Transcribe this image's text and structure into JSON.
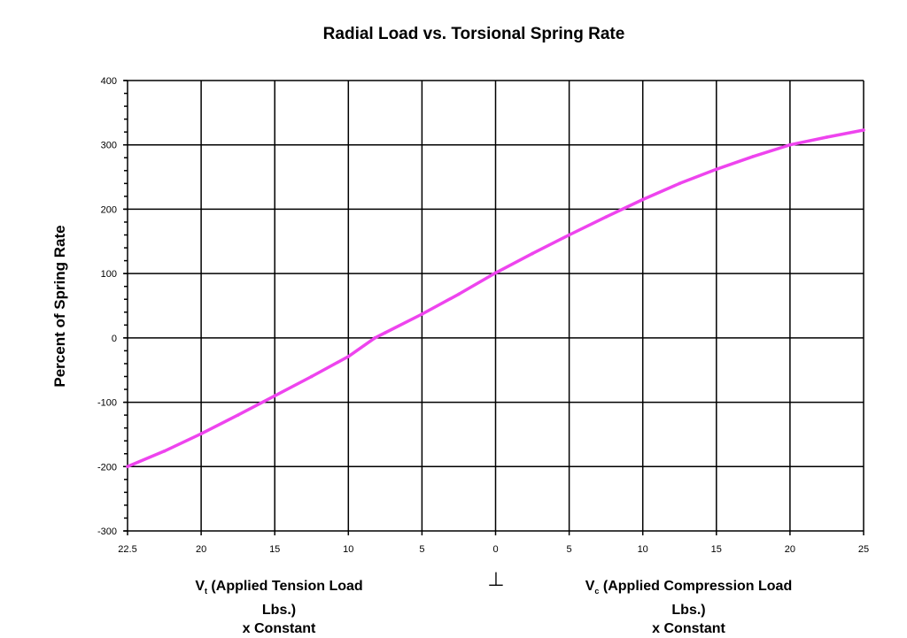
{
  "chart_data": {
    "type": "line",
    "title": "Radial Load vs. Torsional Spring Rate",
    "ylabel": "Percent of Spring Rate",
    "xlabel_left": {
      "symbol": "V",
      "subscript": "t",
      "text": " (Applied Tension Load Lbs.)",
      "line2": "x Constant"
    },
    "xlabel_right": {
      "symbol": "V",
      "subscript": "c",
      "text": " (Applied Compression Load Lbs.)",
      "line2": "x Constant"
    },
    "center_symbol": "⊥",
    "ylim": [
      -300,
      400
    ],
    "yticks": [
      -300,
      -200,
      -100,
      0,
      100,
      200,
      300,
      400
    ],
    "y_minor_step": 20,
    "xtick_labels": [
      "22.5",
      "20",
      "15",
      "10",
      "5",
      "0",
      "5",
      "10",
      "15",
      "20",
      "25"
    ],
    "x_note": "x values are tick positions (0 = left 22.5 tension, 5 = 0, 10 = 25 compression)",
    "grid": true,
    "series": [
      {
        "name": "Spring Rate",
        "color": "#EE44EE",
        "x": [
          0,
          0.5,
          1,
          1.5,
          2,
          2.5,
          3,
          3.36,
          3.5,
          4,
          4.5,
          5,
          5.5,
          6,
          6.5,
          7,
          7.5,
          8,
          8.5,
          9,
          9.5,
          10
        ],
        "y": [
          -200,
          -176,
          -149,
          -120,
          -90,
          -60,
          -29,
          0,
          8,
          37,
          68,
          101,
          131,
          160,
          188,
          215,
          240,
          262,
          282,
          300,
          312,
          323
        ]
      }
    ]
  },
  "colors": {
    "line": "#EE44EE",
    "grid": "#000000"
  }
}
